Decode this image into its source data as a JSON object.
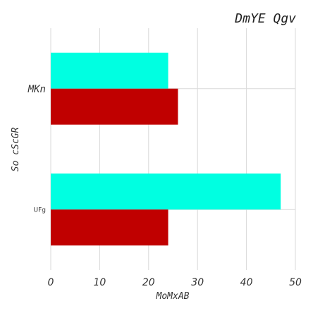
{
  "chart_data": {
    "type": "bar",
    "orientation": "horizontal",
    "title": "DmYE Qgv",
    "xlabel": "MoMxAB",
    "ylabel": "So cScGR",
    "categories": [
      "MKn",
      "UFg"
    ],
    "series": [
      {
        "values": [
          24,
          47
        ],
        "color": "#00ffe1"
      },
      {
        "values": [
          26,
          24
        ],
        "color": "#c00000"
      }
    ],
    "xlim": [
      0,
      50
    ],
    "xticks": [
      0,
      10,
      20,
      30,
      40,
      50
    ],
    "grid": true,
    "legend": "none"
  }
}
